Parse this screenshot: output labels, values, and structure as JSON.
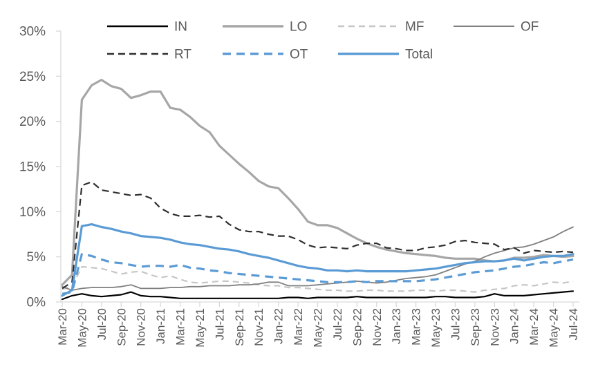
{
  "chart_data": {
    "type": "line",
    "title": "",
    "x_unit": "month",
    "x": [
      "Mar-20",
      "Apr-20",
      "May-20",
      "Jun-20",
      "Jul-20",
      "Aug-20",
      "Sep-20",
      "Oct-20",
      "Nov-20",
      "Dec-20",
      "Jan-21",
      "Feb-21",
      "Mar-21",
      "Apr-21",
      "May-21",
      "Jun-21",
      "Jul-21",
      "Aug-21",
      "Sep-21",
      "Oct-21",
      "Nov-21",
      "Dec-21",
      "Jan-22",
      "Feb-22",
      "Mar-22",
      "Apr-22",
      "May-22",
      "Jun-22",
      "Jul-22",
      "Aug-22",
      "Sep-22",
      "Oct-22",
      "Nov-22",
      "Dec-22",
      "Jan-23",
      "Feb-23",
      "Mar-23",
      "Apr-23",
      "May-23",
      "Jun-23",
      "Jul-23",
      "Aug-23",
      "Sep-23",
      "Oct-23",
      "Nov-23",
      "Dec-23",
      "Jan-24",
      "Feb-24",
      "Mar-24",
      "Apr-24",
      "May-24",
      "Jun-24",
      "Jul-24"
    ],
    "x_tick_labels": [
      "Mar-20",
      "May-20",
      "Jul-20",
      "Sep-20",
      "Nov-20",
      "Jan-21",
      "Mar-21",
      "May-21",
      "Jul-21",
      "Sep-21",
      "Nov-21",
      "Jan-22",
      "Mar-22",
      "May-22",
      "Jul-22",
      "Sep-22",
      "Nov-22",
      "Jan-23",
      "Mar-23",
      "May-23",
      "Jul-23",
      "Sep-23",
      "Nov-23",
      "Jan-24",
      "Mar-24",
      "May-24",
      "Jul-24"
    ],
    "y_tick_labels": [
      "0%",
      "5%",
      "10%",
      "15%",
      "20%",
      "25%",
      "30%"
    ],
    "ylim": [
      0,
      30
    ],
    "y_tick_step": 5,
    "grid": "off",
    "legend_position": "top",
    "legend_rows": [
      [
        "IN",
        "LO",
        "MF",
        "OF"
      ],
      [
        "RT",
        "OT",
        "Total"
      ]
    ],
    "axis_color": "#d9d9d9",
    "text_color": "#595959",
    "series": [
      {
        "name": "IN",
        "color": "#000000",
        "style": "solid",
        "width": 2.2,
        "dash": "",
        "values": [
          0.3,
          0.7,
          0.9,
          0.7,
          0.6,
          0.7,
          0.8,
          1.1,
          0.7,
          0.6,
          0.6,
          0.5,
          0.4,
          0.4,
          0.4,
          0.4,
          0.4,
          0.4,
          0.4,
          0.4,
          0.4,
          0.4,
          0.4,
          0.5,
          0.5,
          0.4,
          0.5,
          0.5,
          0.5,
          0.5,
          0.6,
          0.5,
          0.5,
          0.5,
          0.5,
          0.5,
          0.5,
          0.5,
          0.6,
          0.6,
          0.5,
          0.5,
          0.5,
          0.6,
          0.9,
          0.7,
          0.7,
          0.7,
          0.8,
          0.9,
          1.0,
          1.1,
          1.2
        ]
      },
      {
        "name": "LO",
        "color": "#a6a6a6",
        "style": "solid",
        "width": 3.2,
        "dash": "",
        "values": [
          1.9,
          3.0,
          22.4,
          24.0,
          24.6,
          23.9,
          23.6,
          22.6,
          22.9,
          23.3,
          23.3,
          21.5,
          21.3,
          20.5,
          19.5,
          18.8,
          17.3,
          16.3,
          15.3,
          14.4,
          13.4,
          12.8,
          12.6,
          11.5,
          10.3,
          8.9,
          8.5,
          8.5,
          8.2,
          7.6,
          7.0,
          6.5,
          6.1,
          5.8,
          5.6,
          5.4,
          5.3,
          5.2,
          5.1,
          4.9,
          4.8,
          4.8,
          4.8,
          4.6,
          4.5,
          4.6,
          4.9,
          4.9,
          5.0,
          5.2,
          5.1,
          5.0,
          5.1
        ]
      },
      {
        "name": "MF",
        "color": "#c6c6c6",
        "style": "dashed",
        "width": 2.2,
        "dash": "9 6",
        "values": [
          1.4,
          1.7,
          3.9,
          3.8,
          3.7,
          3.4,
          3.1,
          3.3,
          3.4,
          3.0,
          2.7,
          2.9,
          2.5,
          2.2,
          2.1,
          2.2,
          2.3,
          2.3,
          2.2,
          2.1,
          1.9,
          1.8,
          1.8,
          1.6,
          1.6,
          1.5,
          1.4,
          1.3,
          1.3,
          1.2,
          1.2,
          1.3,
          1.3,
          1.2,
          1.2,
          1.2,
          1.3,
          1.3,
          1.2,
          1.3,
          1.3,
          1.2,
          1.1,
          1.3,
          1.4,
          1.5,
          1.8,
          1.9,
          1.8,
          2.0,
          2.2,
          2.1,
          2.3
        ]
      },
      {
        "name": "OF",
        "color": "#7f7f7f",
        "style": "solid",
        "width": 1.8,
        "dash": "",
        "values": [
          1.7,
          1.3,
          1.5,
          1.6,
          1.6,
          1.6,
          1.7,
          1.9,
          1.5,
          1.5,
          1.5,
          1.6,
          1.6,
          1.7,
          1.7,
          1.8,
          1.8,
          1.8,
          1.9,
          1.9,
          2.0,
          2.2,
          2.2,
          1.8,
          1.8,
          1.8,
          1.9,
          2.0,
          2.1,
          2.2,
          2.3,
          2.2,
          2.1,
          2.2,
          2.4,
          2.6,
          2.7,
          2.8,
          3.0,
          3.4,
          3.8,
          4.2,
          4.5,
          5.0,
          5.4,
          5.7,
          6.0,
          6.1,
          6.4,
          6.8,
          7.2,
          7.8,
          8.3
        ]
      },
      {
        "name": "RT",
        "color": "#2e2e2e",
        "style": "dashed",
        "width": 2.2,
        "dash": "10 6",
        "values": [
          1.5,
          2.2,
          12.9,
          13.3,
          12.4,
          12.2,
          12.0,
          11.8,
          11.9,
          11.5,
          10.4,
          9.8,
          9.5,
          9.5,
          9.6,
          9.4,
          9.5,
          8.6,
          8.0,
          7.8,
          7.8,
          7.5,
          7.3,
          7.3,
          6.9,
          6.3,
          6.0,
          6.1,
          6.0,
          5.9,
          6.3,
          6.5,
          6.5,
          6.0,
          5.9,
          5.7,
          5.7,
          6.0,
          6.1,
          6.3,
          6.7,
          6.8,
          6.6,
          6.5,
          6.4,
          5.8,
          6.0,
          5.4,
          5.7,
          5.6,
          5.5,
          5.6,
          5.5
        ]
      },
      {
        "name": "OT",
        "color": "#5b9bd5",
        "style": "dashed",
        "width": 3.2,
        "dash": "12 8",
        "values": [
          0.9,
          1.1,
          5.3,
          5.1,
          4.7,
          4.4,
          4.3,
          4.1,
          3.9,
          4.0,
          4.0,
          3.9,
          4.1,
          3.8,
          3.7,
          3.5,
          3.4,
          3.2,
          3.1,
          3.0,
          2.9,
          2.8,
          2.7,
          2.6,
          2.5,
          2.4,
          2.3,
          2.2,
          2.2,
          2.2,
          2.3,
          2.2,
          2.3,
          2.3,
          2.3,
          2.3,
          2.3,
          2.4,
          2.5,
          2.7,
          2.9,
          3.1,
          3.3,
          3.4,
          3.5,
          3.7,
          3.9,
          4.0,
          4.2,
          4.4,
          4.3,
          4.5,
          4.7
        ]
      },
      {
        "name": "Total",
        "color": "#5b9bd5",
        "style": "solid",
        "width": 3.2,
        "dash": "",
        "values": [
          0.7,
          1.3,
          8.4,
          8.6,
          8.3,
          8.1,
          7.8,
          7.6,
          7.3,
          7.2,
          7.1,
          6.9,
          6.6,
          6.4,
          6.3,
          6.1,
          5.9,
          5.8,
          5.6,
          5.3,
          5.1,
          4.9,
          4.6,
          4.3,
          4.0,
          3.8,
          3.7,
          3.5,
          3.5,
          3.4,
          3.5,
          3.4,
          3.4,
          3.4,
          3.4,
          3.4,
          3.5,
          3.6,
          3.7,
          3.9,
          4.1,
          4.3,
          4.4,
          4.5,
          4.5,
          4.6,
          4.8,
          4.6,
          4.8,
          5.0,
          5.1,
          5.1,
          5.3
        ]
      }
    ]
  }
}
